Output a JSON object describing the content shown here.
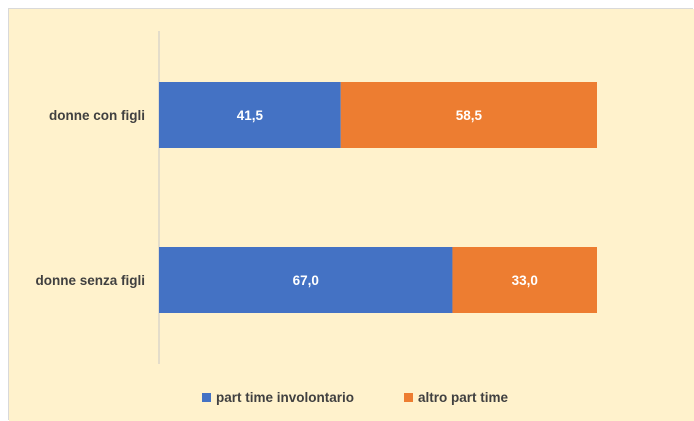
{
  "colors": {
    "background": "#fff2cc",
    "series_1": "#4472c4",
    "series_2": "#ed7d31",
    "axis": "#c8c8c8",
    "label_text": "#404040",
    "data_label_text": "#ffffff"
  },
  "chart_data": {
    "type": "bar",
    "orientation": "horizontal",
    "stacked": "100%",
    "title": "",
    "xlabel": "",
    "ylabel": "",
    "xlim": [
      0,
      100
    ],
    "grid": false,
    "legend_position": "bottom",
    "categories": [
      "donne con figli",
      "donne senza figli"
    ],
    "series": [
      {
        "name": "part time involontario",
        "values": [
          41.5,
          67.0
        ],
        "labels": [
          "41,5",
          "67,0"
        ]
      },
      {
        "name": "altro part time",
        "values": [
          58.5,
          33.0
        ],
        "labels": [
          "58,5",
          "33,0"
        ]
      }
    ]
  }
}
